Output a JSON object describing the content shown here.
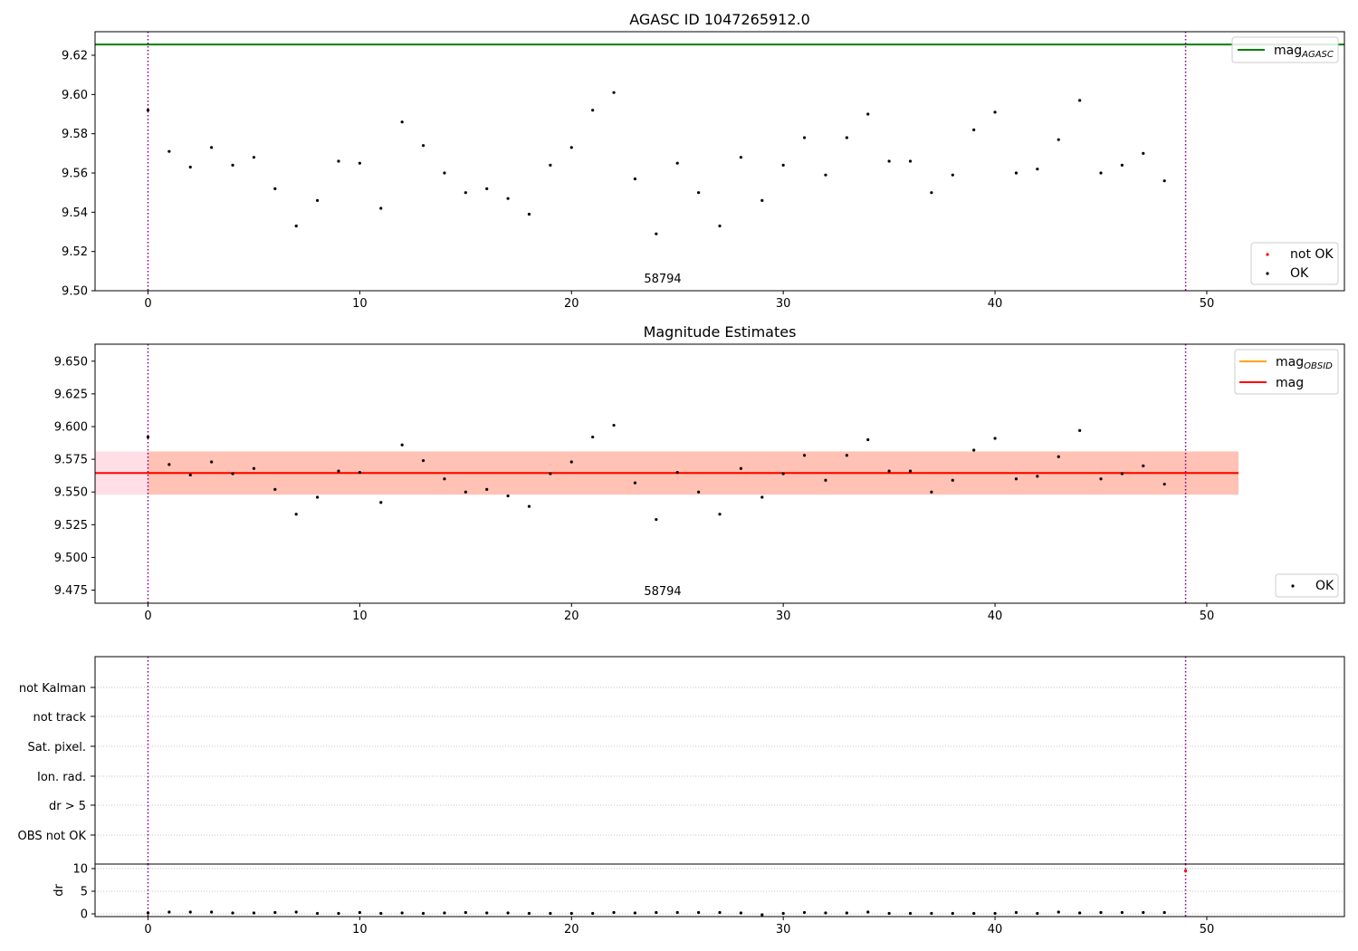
{
  "chart_data": [
    {
      "type": "scatter",
      "title": "AGASC ID 1047265912.0",
      "annotation": "58794",
      "xlim": [
        -2.5,
        56.5
      ],
      "ylim": [
        9.5,
        9.632
      ],
      "xticks": [
        0,
        10,
        20,
        30,
        40,
        50
      ],
      "yticks": [
        9.5,
        9.52,
        9.54,
        9.56,
        9.58,
        9.6,
        9.62
      ],
      "ytick_labels": [
        "9.50",
        "9.52",
        "9.54",
        "9.56",
        "9.58",
        "9.60",
        "9.62"
      ],
      "vlines": [
        0,
        49
      ],
      "hline": {
        "name": "mag",
        "subscript": "AGASC",
        "value": 9.6255,
        "color": "#008000"
      },
      "series": [
        {
          "name": "OK",
          "color": "#000000",
          "x": [
            0,
            1,
            2,
            3,
            4,
            5,
            6,
            7,
            8,
            9,
            10,
            11,
            12,
            13,
            14,
            15,
            16,
            17,
            18,
            19,
            20,
            21,
            22,
            23,
            24,
            25,
            26,
            27,
            28,
            29,
            30,
            31,
            32,
            33,
            34,
            35,
            36,
            37,
            38,
            39,
            40,
            41,
            42,
            43,
            44,
            45,
            46,
            47,
            48
          ],
          "y": [
            9.592,
            9.571,
            9.563,
            9.573,
            9.564,
            9.568,
            9.552,
            9.533,
            9.546,
            9.566,
            9.565,
            9.542,
            9.586,
            9.574,
            9.56,
            9.55,
            9.552,
            9.547,
            9.539,
            9.564,
            9.573,
            9.592,
            9.601,
            9.557,
            9.529,
            9.565,
            9.55,
            9.533,
            9.568,
            9.546,
            9.564,
            9.578,
            9.559,
            9.578,
            9.59,
            9.566,
            9.566,
            9.55,
            9.559,
            9.582,
            9.591,
            9.56,
            9.562,
            9.577,
            9.597,
            9.56,
            9.564,
            9.57,
            9.556
          ]
        },
        {
          "name": "not OK",
          "color": "#ff0000",
          "x": [],
          "y": []
        }
      ],
      "legends": {
        "lines": "top-right",
        "points": "bottom-right"
      }
    },
    {
      "type": "scatter",
      "title": "Magnitude Estimates",
      "annotation": "58794",
      "xlim": [
        -2.5,
        56.5
      ],
      "ylim": [
        9.465,
        9.663
      ],
      "xticks": [
        0,
        10,
        20,
        30,
        40,
        50
      ],
      "yticks": [
        9.475,
        9.5,
        9.525,
        9.55,
        9.575,
        9.6,
        9.625,
        9.65
      ],
      "ytick_labels": [
        "9.475",
        "9.500",
        "9.525",
        "9.550",
        "9.575",
        "9.600",
        "9.625",
        "9.650"
      ],
      "vlines": [
        0,
        49
      ],
      "lines": [
        {
          "name": "mag",
          "subscript": "OBSID",
          "color": "#ffa500",
          "x": [
            0,
            51.5
          ],
          "value": 9.5645
        },
        {
          "name": "mag",
          "color": "#ff0000",
          "x": [
            -2.5,
            51.5
          ],
          "value": 9.5645
        }
      ],
      "bands": [
        {
          "color": "#ffc0cb",
          "x": [
            -2.5,
            51.5
          ],
          "y": [
            9.548,
            9.581
          ]
        },
        {
          "color": "#ffa07a",
          "x": [
            0,
            51.5
          ],
          "y": [
            9.548,
            9.581
          ]
        }
      ],
      "series": [
        {
          "name": "OK",
          "color": "#000000",
          "x": [
            0,
            1,
            2,
            3,
            4,
            5,
            6,
            7,
            8,
            9,
            10,
            11,
            12,
            13,
            14,
            15,
            16,
            17,
            18,
            19,
            20,
            21,
            22,
            23,
            24,
            25,
            26,
            27,
            28,
            29,
            30,
            31,
            32,
            33,
            34,
            35,
            36,
            37,
            38,
            39,
            40,
            41,
            42,
            43,
            44,
            45,
            46,
            47,
            48
          ],
          "y": [
            9.592,
            9.571,
            9.563,
            9.573,
            9.564,
            9.568,
            9.552,
            9.533,
            9.546,
            9.566,
            9.565,
            9.542,
            9.586,
            9.574,
            9.56,
            9.55,
            9.552,
            9.547,
            9.539,
            9.564,
            9.573,
            9.592,
            9.601,
            9.557,
            9.529,
            9.565,
            9.55,
            9.533,
            9.568,
            9.546,
            9.564,
            9.578,
            9.559,
            9.578,
            9.59,
            9.566,
            9.566,
            9.55,
            9.559,
            9.582,
            9.591,
            9.56,
            9.562,
            9.577,
            9.597,
            9.56,
            9.564,
            9.57,
            9.556
          ]
        }
      ],
      "legends": {
        "lines": "top-right",
        "points": "bottom-right"
      }
    },
    {
      "type": "scatter",
      "title": "",
      "xlim": [
        -2.5,
        56.5
      ],
      "xticks": [
        0,
        10,
        20,
        30,
        40,
        50
      ],
      "vlines": [
        0,
        49
      ],
      "flags": [
        "not Kalman",
        "not track",
        "Sat. pixel.",
        "Ion. rad.",
        "dr > 5",
        "OBS not OK"
      ],
      "grid": true
    },
    {
      "type": "scatter",
      "title": "",
      "ylabel": "dr",
      "xlim": [
        -2.5,
        56.5
      ],
      "ylim": [
        -0.6,
        11
      ],
      "xticks": [
        0,
        10,
        20,
        30,
        40,
        50
      ],
      "yticks": [
        0,
        5,
        10
      ],
      "ytick_labels": [
        "0",
        "5",
        "10"
      ],
      "vlines": [
        0,
        49
      ],
      "grid": true,
      "series": [
        {
          "name": "dr",
          "color": "#000000",
          "x": [
            0,
            1,
            2,
            3,
            4,
            5,
            6,
            7,
            8,
            9,
            10,
            11,
            12,
            13,
            14,
            15,
            16,
            17,
            18,
            19,
            20,
            21,
            22,
            23,
            24,
            25,
            26,
            27,
            28,
            29,
            30,
            31,
            32,
            33,
            34,
            35,
            36,
            37,
            38,
            39,
            40,
            41,
            42,
            43,
            44,
            45,
            46,
            47,
            48
          ],
          "y": [
            0.2,
            0.4,
            0.4,
            0.4,
            0.2,
            0.2,
            0.3,
            0.4,
            0.1,
            0.1,
            0.3,
            0.1,
            0.2,
            0.1,
            0.2,
            0.3,
            0.2,
            0.2,
            0.1,
            0.1,
            0.1,
            0.1,
            0.3,
            0.2,
            0.3,
            0.3,
            0.3,
            0.3,
            0.2,
            -0.2,
            0.1,
            0.3,
            0.2,
            0.2,
            0.4,
            0.1,
            0.1,
            0.1,
            0.1,
            0.1,
            0.1,
            0.3,
            0.1,
            0.4,
            0.2,
            0.3,
            0.3,
            0.3,
            0.3
          ]
        },
        {
          "name": "dr",
          "color": "#ff0000",
          "x": [
            49
          ],
          "y": [
            9.5
          ]
        }
      ]
    }
  ]
}
